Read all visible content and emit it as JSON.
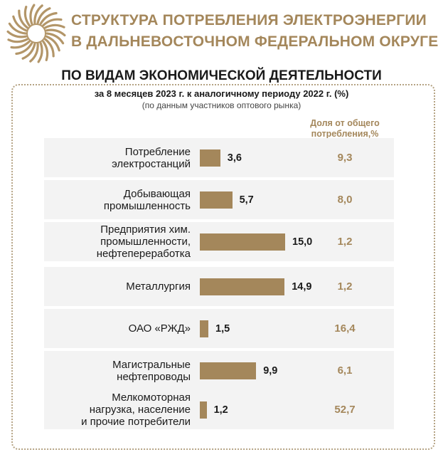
{
  "header": {
    "title_line1": "СТРУКТУРА ПОТРЕБЛЕНИЯ ЭЛЕКТРОЭНЕРГИИ",
    "title_line2": "В ДАЛЬНЕВОСТОЧНОМ ФЕДЕРАЛЬНОМ ОКРУГЕ",
    "subtitle": "ПО ВИДАМ ЭКОНОМИЧЕСКОЙ ДЕЯТЕЛЬНОСТИ",
    "period": "за 8 месяцев 2023 г. к аналогичному периоду 2022 г. (%)",
    "source": "(по данным участников оптового рынка)",
    "share_header_line1": "Доля от общего",
    "share_header_line2": "потребления,%"
  },
  "colors": {
    "accent": "#a4875b",
    "row_bg": "#f3f3f3"
  },
  "chart_data": {
    "type": "bar",
    "orientation": "horizontal",
    "categories": [
      [
        "Потребление",
        "электростанций"
      ],
      [
        "Добывающая",
        "промышленность"
      ],
      [
        "Предприятия хим.",
        "промышленности,",
        "нефтепереработка"
      ],
      [
        "Металлургия"
      ],
      [
        "ОАО «РЖД»"
      ],
      [
        "Магистральные",
        "нефтепроводы"
      ],
      [
        "Мелкомоторная",
        "нагрузка, население",
        "и прочие потребители"
      ]
    ],
    "series": [
      {
        "name": "",
        "values": [
          3.6,
          5.7,
          15.0,
          14.9,
          1.5,
          9.9,
          1.2
        ],
        "labels": [
          "3,6",
          "5,7",
          "15,0",
          "14,9",
          "1,5",
          "9,9",
          "1,2"
        ]
      }
    ],
    "share": {
      "name": "Доля от общего потребления,%",
      "values": [
        9.3,
        8.0,
        1.2,
        1.2,
        16.4,
        6.1,
        52.7
      ],
      "labels": [
        "9,3",
        "8,0",
        "1,2",
        "1,2",
        "16,4",
        "6,1",
        "52,7"
      ]
    },
    "xlim": [
      0,
      15
    ]
  }
}
